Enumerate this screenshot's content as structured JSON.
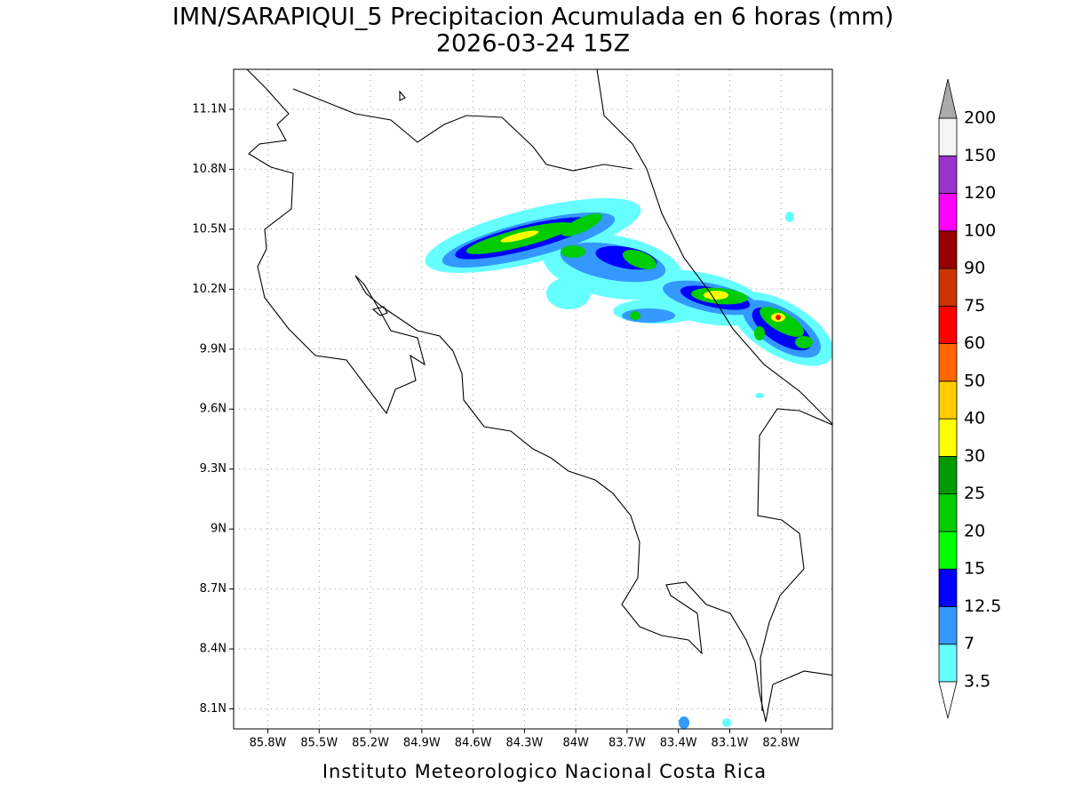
{
  "title": "IMN/SARAPIQUI_5 Precipitacion Acumulada en 6 horas (mm)",
  "subtitle": "2026-03-24 15Z",
  "footer": "Instituto Meteorologico Nacional Costa Rica",
  "map": {
    "xlim": [
      -86.0,
      -82.5
    ],
    "ylim": [
      8.0,
      11.3
    ],
    "xticks": [
      {
        "value": -85.8,
        "label": "85.8W"
      },
      {
        "value": -85.5,
        "label": "85.5W"
      },
      {
        "value": -85.2,
        "label": "85.2W"
      },
      {
        "value": -84.9,
        "label": "84.9W"
      },
      {
        "value": -84.6,
        "label": "84.6W"
      },
      {
        "value": -84.3,
        "label": "84.3W"
      },
      {
        "value": -84.0,
        "label": "84W"
      },
      {
        "value": -83.7,
        "label": "83.7W"
      },
      {
        "value": -83.4,
        "label": "83.4W"
      },
      {
        "value": -83.1,
        "label": "83.1W"
      },
      {
        "value": -82.8,
        "label": "82.8W"
      }
    ],
    "yticks": [
      {
        "value": 8.1,
        "label": "8.1N"
      },
      {
        "value": 8.4,
        "label": "8.4N"
      },
      {
        "value": 8.7,
        "label": "8.7N"
      },
      {
        "value": 9.0,
        "label": "9N"
      },
      {
        "value": 9.3,
        "label": "9.3N"
      },
      {
        "value": 9.6,
        "label": "9.6N"
      },
      {
        "value": 9.9,
        "label": "9.9N"
      },
      {
        "value": 10.2,
        "label": "10.2N"
      },
      {
        "value": 10.5,
        "label": "10.5N"
      },
      {
        "value": 10.8,
        "label": "10.8N"
      },
      {
        "value": 11.1,
        "label": "11.1N"
      }
    ],
    "grid": true
  },
  "colorbar": {
    "levels": [
      3.5,
      7,
      12.5,
      15,
      20,
      25,
      30,
      40,
      50,
      60,
      75,
      90,
      100,
      120,
      150,
      200
    ],
    "colors": [
      "#66ffff",
      "#3399ff",
      "#0000ff",
      "#00ff00",
      "#00cc00",
      "#009900",
      "#ffff00",
      "#ffcc00",
      "#ff6600",
      "#ff0000",
      "#cc3300",
      "#990000",
      "#ff00ff",
      "#9933cc",
      "#f5f5f5"
    ],
    "over_color": "#aaaaaa",
    "under_color": "#ffffff"
  }
}
